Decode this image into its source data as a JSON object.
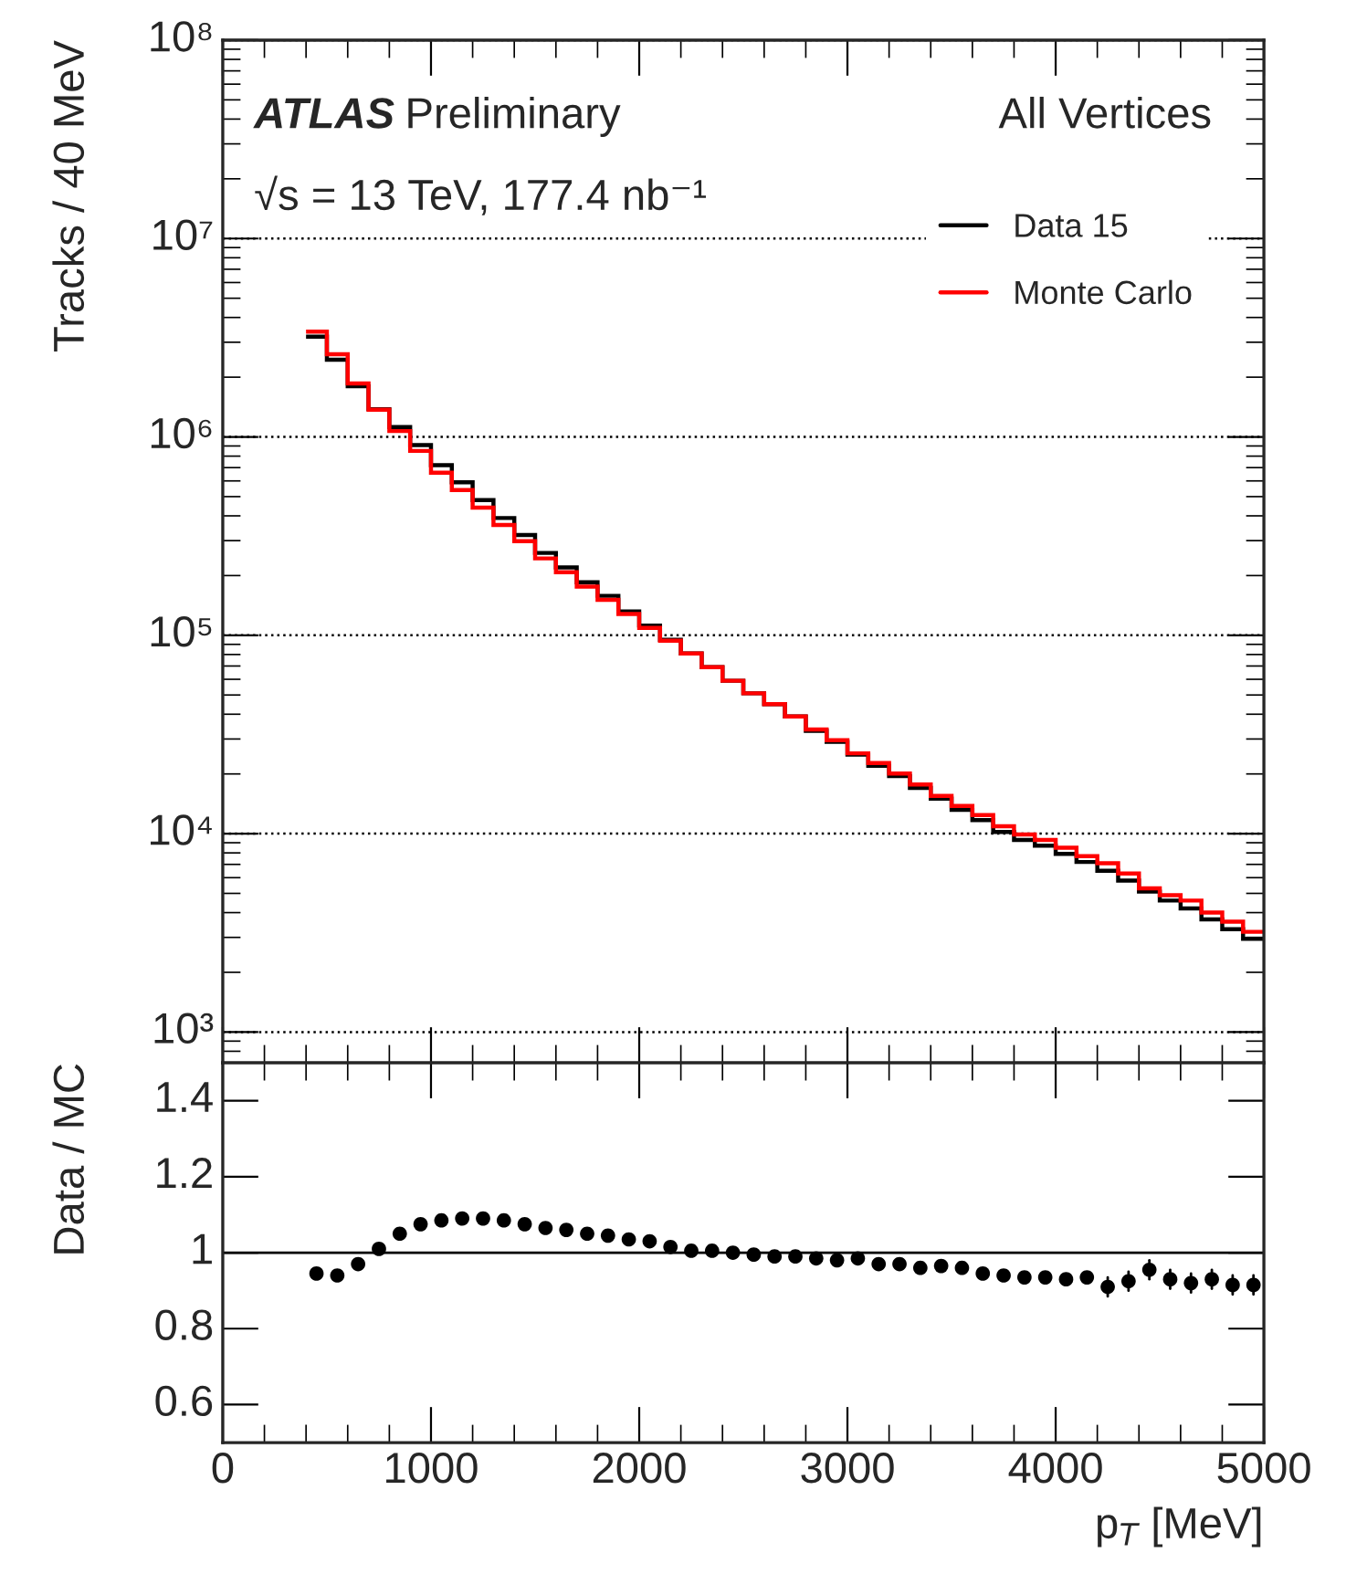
{
  "chart_data": [
    {
      "type": "histogram",
      "ylabel": "Tracks / 40 MeV",
      "log": "y",
      "grid": "y",
      "legend": "top right",
      "tick_labels": "y",
      "annotations": [
        "ATLAS",
        "Preliminary",
        "√s = 13 TeV, 177.4 nb⁻¹",
        "All Vertices"
      ],
      "xlim": [
        0,
        5000
      ],
      "xticks": [
        0,
        1000,
        2000,
        3000,
        4000,
        5000
      ],
      "ylim": [
        700,
        100000000
      ],
      "yticks": [
        {
          "value": 1000,
          "label": "10³"
        },
        {
          "value": 10000,
          "label": "10⁴"
        },
        {
          "value": 100000,
          "label": "10⁵"
        },
        {
          "value": 1000000,
          "label": "10⁶"
        },
        {
          "value": 10000000,
          "label": "10⁷"
        },
        {
          "value": 100000000,
          "label": "10⁸"
        }
      ],
      "bins": [
        400,
        500,
        600,
        700,
        800,
        900,
        1000,
        1100,
        1200,
        1300,
        1400,
        1500,
        1600,
        1700,
        1800,
        1900,
        2000,
        2100,
        2200,
        2300,
        2400,
        2500,
        2600,
        2700,
        2800,
        2900,
        3000,
        3100,
        3200,
        3300,
        3400,
        3500,
        3600,
        3700,
        3800,
        3900,
        4000,
        4100,
        4200,
        4300,
        4400,
        4500,
        4600,
        4700,
        4800,
        4900,
        5000
      ],
      "series": [
        {
          "name": "Data 15",
          "color": "#000000",
          "values": [
            3200000,
            2450000,
            1800000,
            1380000,
            1120000,
            910000,
            720000,
            590000,
            480000,
            390000,
            320000,
            260000,
            220000,
            185000,
            158000,
            132000,
            112000,
            95000,
            81000,
            69000,
            59000,
            51000,
            45000,
            39000,
            33000,
            29000,
            25000,
            22000,
            19500,
            17000,
            15000,
            13200,
            11700,
            10200,
            9300,
            8700,
            7900,
            7200,
            6500,
            5800,
            5100,
            4600,
            4200,
            3700,
            3300,
            2950
          ]
        },
        {
          "name": "Monte Carlo",
          "color": "#ff0000",
          "values": [
            3390000,
            2610000,
            1860000,
            1370000,
            1070000,
            850000,
            660000,
            540000,
            440000,
            360000,
            298000,
            244000,
            208000,
            176000,
            151000,
            128000,
            109000,
            94000,
            81000,
            69000,
            59000,
            51000,
            45000,
            39000,
            33500,
            29600,
            25400,
            22700,
            20100,
            17700,
            15500,
            13800,
            12400,
            10900,
            9900,
            9300,
            8500,
            7700,
            7100,
            6300,
            5300,
            4900,
            4600,
            4000,
            3600,
            3200
          ]
        }
      ]
    },
    {
      "type": "scatter",
      "xlabel": "p$_{T}$ [MeV]",
      "ylabel": "Data / MC",
      "xlim": [
        0,
        5000
      ],
      "xticks": [
        0,
        1000,
        2000,
        3000,
        4000,
        5000
      ],
      "ylim": [
        0.5,
        1.5
      ],
      "yticks": [
        0.6,
        0.8,
        1,
        1.2,
        1.4
      ],
      "ref_lines": [
        {
          "axis": "y",
          "value": 1,
          "color": "#000000"
        }
      ],
      "x": [
        450,
        550,
        650,
        750,
        850,
        950,
        1050,
        1150,
        1250,
        1350,
        1450,
        1550,
        1650,
        1750,
        1850,
        1950,
        2050,
        2150,
        2250,
        2350,
        2450,
        2550,
        2650,
        2750,
        2850,
        2950,
        3050,
        3150,
        3250,
        3350,
        3450,
        3550,
        3650,
        3750,
        3850,
        3950,
        4050,
        4150,
        4250,
        4350,
        4450,
        4550,
        4650,
        4750,
        4850,
        4950
      ],
      "series": [
        {
          "color": "#000000",
          "values": [
            0.945,
            0.94,
            0.97,
            1.01,
            1.05,
            1.075,
            1.085,
            1.09,
            1.09,
            1.085,
            1.075,
            1.065,
            1.06,
            1.05,
            1.045,
            1.035,
            1.03,
            1.015,
            1.005,
            1.005,
            1.0,
            0.995,
            0.99,
            0.99,
            0.985,
            0.98,
            0.985,
            0.97,
            0.97,
            0.96,
            0.965,
            0.96,
            0.945,
            0.94,
            0.935,
            0.935,
            0.93,
            0.935,
            0.91,
            0.925,
            0.955,
            0.93,
            0.92,
            0.93,
            0.915,
            0.915
          ],
          "errors": [
            null,
            null,
            null,
            null,
            null,
            null,
            null,
            null,
            null,
            null,
            null,
            null,
            null,
            null,
            null,
            null,
            null,
            null,
            null,
            null,
            null,
            null,
            null,
            null,
            null,
            null,
            null,
            null,
            null,
            null,
            null,
            null,
            null,
            null,
            null,
            null,
            null,
            null,
            0.025,
            0.025,
            0.025,
            0.025,
            0.025,
            0.025,
            0.025,
            0.025
          ]
        }
      ]
    }
  ]
}
